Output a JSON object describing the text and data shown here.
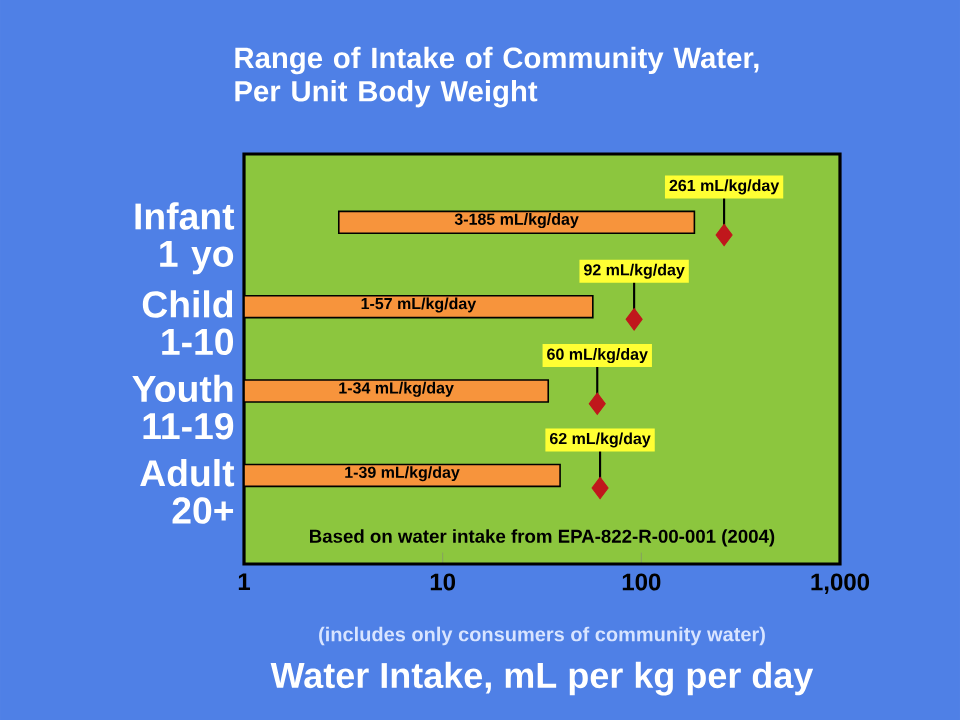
{
  "chart_data": {
    "type": "bar",
    "orientation": "horizontal",
    "title": "Range of Intake of Community Water, Per Unit Body Weight",
    "xlabel": "Water Intake, mL per kg per day",
    "categories": [
      "Infant 1 yo",
      "Child 1-10",
      "Youth 11-19",
      "Adult 20+"
    ],
    "log": "x",
    "xlim": [
      1,
      1000
    ],
    "xticks": [
      1,
      10,
      100,
      {
        "value": 1000,
        "label": "1,000"
      }
    ],
    "series": [
      {
        "color": "#f7943c",
        "base": [
          3,
          1,
          1,
          1
        ],
        "values": [
          182,
          56,
          33,
          38
        ],
        "value_labels": [
          "3-185 mL/kg/day",
          "1-57 mL/kg/day",
          "1-34 mL/kg/day",
          "1-39 mL/kg/day"
        ]
      },
      {
        "type": "scatter",
        "marker": "diamond",
        "color": "#c0171c",
        "values": [
          261,
          92,
          60,
          62
        ],
        "value_labels": [
          "261 mL/kg/day",
          "92 mL/kg/day",
          "60 mL/kg/day",
          "62 mL/kg/day"
        ]
      }
    ],
    "annotations": [
      "Based on water intake from EPA-822-R-00-001 (2004)",
      "(includes only consumers of community water)"
    ]
  }
}
